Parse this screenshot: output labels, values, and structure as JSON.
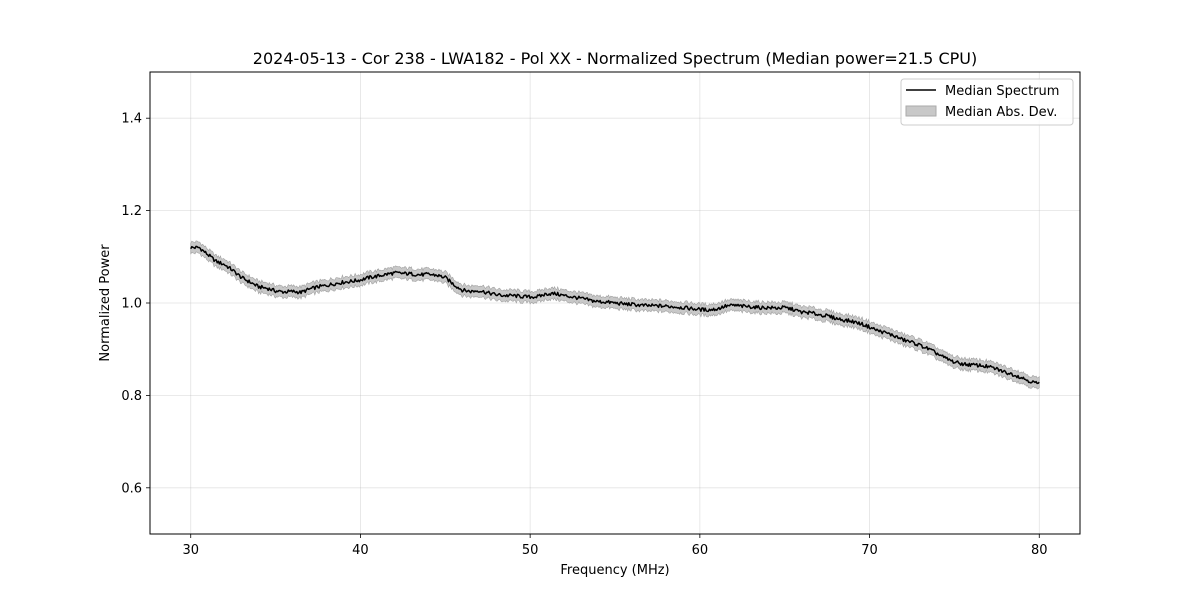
{
  "chart_data": {
    "type": "line",
    "title": "2024-05-13 - Cor 238 - LWA182 - Pol XX - Normalized Spectrum (Median power=21.5 CPU)",
    "xlabel": "Frequency (MHz)",
    "ylabel": "Normalized Power",
    "xlim": [
      27.6,
      82.4
    ],
    "ylim": [
      0.5,
      1.5
    ],
    "xticks": [
      30,
      40,
      50,
      60,
      70,
      80
    ],
    "yticks": [
      0.6,
      0.8,
      1.0,
      1.2,
      1.4
    ],
    "xtick_labels": [
      "30",
      "40",
      "50",
      "60",
      "70",
      "80"
    ],
    "ytick_labels": [
      "0.6",
      "0.8",
      "1.0",
      "1.2",
      "1.4"
    ],
    "grid": true,
    "legend_position": "top-right",
    "legend": [
      "Median Spectrum",
      "Median Abs. Dev."
    ],
    "series": [
      {
        "name": "Median Spectrum",
        "kind": "line",
        "color": "#000000",
        "x": [
          30.0,
          30.5,
          31.0,
          31.5,
          32.0,
          32.5,
          33.0,
          33.5,
          34.0,
          34.5,
          35.0,
          35.5,
          36.0,
          36.5,
          37.0,
          37.5,
          38.0,
          38.5,
          39.0,
          39.5,
          40.0,
          40.5,
          41.0,
          41.5,
          42.0,
          42.5,
          43.0,
          43.5,
          44.0,
          44.5,
          45.0,
          45.5,
          46.0,
          46.5,
          47.0,
          47.5,
          48.0,
          48.5,
          49.0,
          49.5,
          50.0,
          50.5,
          51.0,
          51.5,
          52.0,
          52.5,
          53.0,
          53.5,
          54.0,
          54.5,
          55.0,
          55.5,
          56.0,
          56.5,
          57.0,
          57.5,
          58.0,
          58.5,
          59.0,
          59.5,
          60.0,
          60.5,
          61.0,
          61.5,
          62.0,
          62.5,
          63.0,
          63.5,
          64.0,
          64.5,
          65.0,
          65.5,
          66.0,
          66.5,
          67.0,
          67.5,
          68.0,
          68.5,
          69.0,
          69.5,
          70.0,
          70.5,
          71.0,
          71.5,
          72.0,
          72.5,
          73.0,
          73.5,
          74.0,
          74.5,
          75.0,
          75.5,
          76.0,
          76.5,
          77.0,
          77.5,
          78.0,
          78.5,
          79.0,
          79.5,
          80.0
        ],
        "values": [
          1.12,
          1.12,
          1.105,
          1.09,
          1.083,
          1.07,
          1.055,
          1.045,
          1.035,
          1.032,
          1.026,
          1.024,
          1.025,
          1.023,
          1.03,
          1.035,
          1.038,
          1.042,
          1.045,
          1.047,
          1.05,
          1.055,
          1.058,
          1.062,
          1.065,
          1.064,
          1.063,
          1.061,
          1.062,
          1.06,
          1.055,
          1.04,
          1.028,
          1.025,
          1.027,
          1.022,
          1.018,
          1.016,
          1.016,
          1.014,
          1.013,
          1.014,
          1.02,
          1.02,
          1.016,
          1.013,
          1.01,
          1.006,
          1.003,
          1.002,
          1.0,
          0.998,
          0.997,
          0.995,
          0.994,
          0.994,
          0.993,
          0.992,
          0.99,
          0.988,
          0.986,
          0.985,
          0.987,
          0.993,
          0.995,
          0.993,
          0.992,
          0.99,
          0.99,
          0.989,
          0.99,
          0.986,
          0.98,
          0.979,
          0.975,
          0.972,
          0.967,
          0.963,
          0.96,
          0.955,
          0.948,
          0.94,
          0.935,
          0.928,
          0.92,
          0.915,
          0.908,
          0.9,
          0.89,
          0.88,
          0.872,
          0.868,
          0.866,
          0.865,
          0.862,
          0.857,
          0.85,
          0.845,
          0.838,
          0.83,
          0.825
        ]
      },
      {
        "name": "Median Abs. Dev.",
        "kind": "band",
        "color": "#c8c8c8",
        "half_width": 0.012
      }
    ]
  }
}
